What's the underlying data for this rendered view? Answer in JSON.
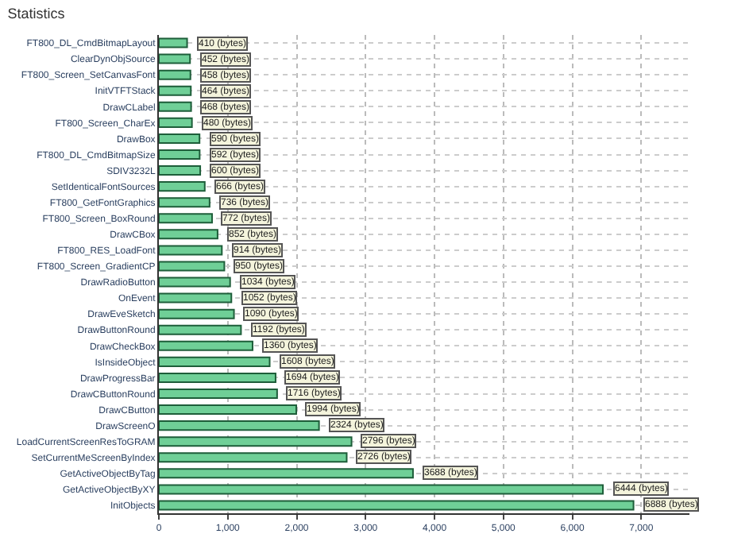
{
  "chart_data": {
    "type": "bar",
    "orientation": "horizontal",
    "title": "Statistics",
    "categories": [
      "FT800_DL_CmdBitmapLayout",
      "ClearDynObjSource",
      "FT800_Screen_SetCanvasFont",
      "InitVTFTStack",
      "DrawCLabel",
      "FT800_Screen_CharEx",
      "DrawBox",
      "FT800_DL_CmdBitmapSize",
      "SDIV3232L",
      "SetIdenticalFontSources",
      "FT800_GetFontGraphics",
      "FT800_Screen_BoxRound",
      "DrawCBox",
      "FT800_RES_LoadFont",
      "FT800_Screen_GradientCP",
      "DrawRadioButton",
      "OnEvent",
      "DrawEveSketch",
      "DrawButtonRound",
      "DrawCheckBox",
      "IsInsideObject",
      "DrawProgressBar",
      "DrawCButtonRound",
      "DrawCButton",
      "DrawScreenO",
      "LoadCurrentScreenResToGRAM",
      "SetCurrentMeScreenByIndex",
      "GetActiveObjectByTag",
      "GetActiveObjectByXY",
      "InitObjects"
    ],
    "values": [
      410,
      452,
      458,
      464,
      468,
      480,
      590,
      592,
      600,
      666,
      736,
      772,
      852,
      914,
      950,
      1034,
      1052,
      1090,
      1192,
      1360,
      1608,
      1694,
      1716,
      1994,
      2324,
      2796,
      2726,
      3688,
      6444,
      6888
    ],
    "value_labels": [
      "410 (bytes)",
      "452 (bytes)",
      "458 (bytes)",
      "464 (bytes)",
      "468 (bytes)",
      "480 (bytes)",
      "590 (bytes)",
      "592 (bytes)",
      "600 (bytes)",
      "666 (bytes)",
      "736 (bytes)",
      "772 (bytes)",
      "852 (bytes)",
      "914 (bytes)",
      "950 (bytes)",
      "1034 (bytes)",
      "1052 (bytes)",
      "1090 (bytes)",
      "1192 (bytes)",
      "1360 (bytes)",
      "1608 (bytes)",
      "1694 (bytes)",
      "1716 (bytes)",
      "1994 (bytes)",
      "2324 (bytes)",
      "2796 (bytes)",
      "2726 (bytes)",
      "3688 (bytes)",
      "6444 (bytes)",
      "6888 (bytes)"
    ],
    "color": "#6fcf97",
    "xlim": [
      0,
      7700
    ],
    "xticks": [
      0,
      {
        "value": 1000,
        "label": "1,000"
      },
      {
        "value": 2000,
        "label": "2,000"
      },
      {
        "value": 3000,
        "label": "3,000"
      },
      {
        "value": 4000,
        "label": "4,000"
      },
      {
        "value": 5000,
        "label": "5,000"
      },
      {
        "value": 6000,
        "label": "6,000"
      },
      {
        "value": 7000,
        "label": "7,000"
      }
    ],
    "grid": true,
    "legend": false
  }
}
